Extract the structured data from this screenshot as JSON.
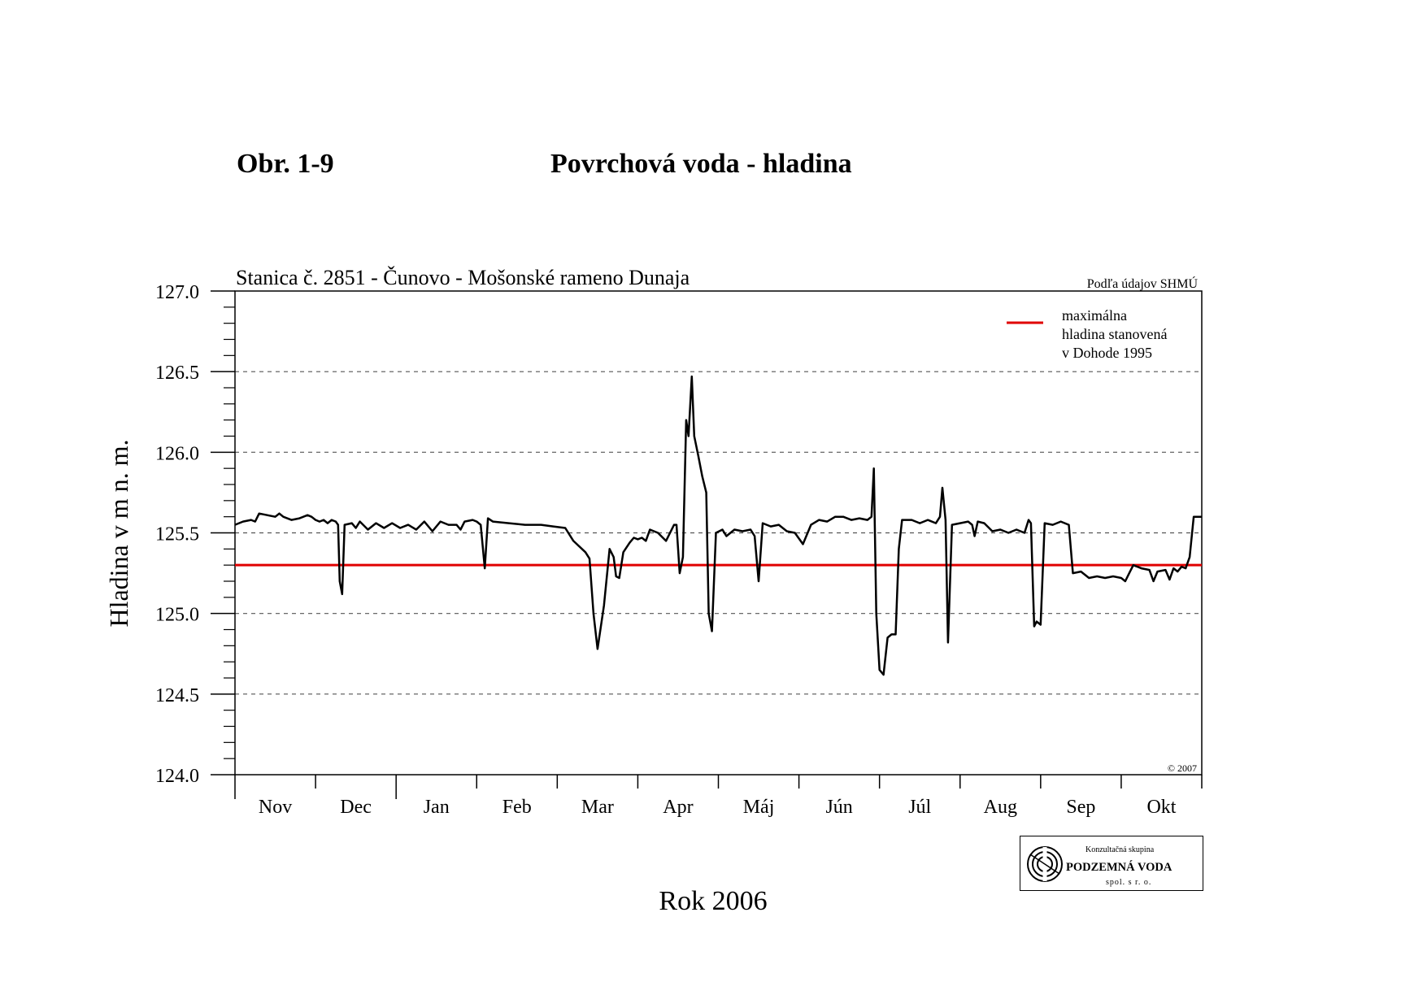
{
  "figure": {
    "number": "Obr. 1-9",
    "title": "Povrchová voda - hladina"
  },
  "colors": {
    "series": "#000000",
    "limit_line": "#e00000",
    "grid": "#555555"
  },
  "chart_data": {
    "type": "line",
    "title": "Stanica č. 2851 - Čunovo - Mošonské rameno Dunaja",
    "source_note": "Podľa údajov SHMÚ",
    "copyright": "© 2007",
    "xlabel": "Rok 2006",
    "ylabel": "Hladina v m n. m.",
    "ylim": [
      124.0,
      127.0
    ],
    "xlim": [
      0,
      12
    ],
    "grid": "horizontal dashed",
    "legend_position": "top-right",
    "yticks": [
      "127.0",
      "126.5",
      "126.0",
      "125.5",
      "125.0",
      "124.5",
      "124.0"
    ],
    "months": [
      "Nov",
      "Dec",
      "Jan",
      "Feb",
      "Mar",
      "Apr",
      "Máj",
      "Jún",
      "Júl",
      "Aug",
      "Sep",
      "Okt"
    ],
    "reference_line": {
      "name": "maximálna hladina stanovená v Dohode 1995",
      "legend_lines": [
        "maximálna",
        "hladina stanovená",
        "v Dohode 1995"
      ],
      "value": 125.3
    },
    "series": [
      {
        "values": [
          [
            0.0,
            125.55
          ],
          [
            0.1,
            125.57
          ],
          [
            0.2,
            125.58
          ],
          [
            0.25,
            125.57
          ],
          [
            0.3,
            125.62
          ],
          [
            0.4,
            125.61
          ],
          [
            0.5,
            125.6
          ],
          [
            0.55,
            125.62
          ],
          [
            0.6,
            125.6
          ],
          [
            0.7,
            125.58
          ],
          [
            0.8,
            125.59
          ],
          [
            0.9,
            125.61
          ],
          [
            0.95,
            125.6
          ],
          [
            1.0,
            125.58
          ],
          [
            1.05,
            125.57
          ],
          [
            1.1,
            125.58
          ],
          [
            1.15,
            125.56
          ],
          [
            1.2,
            125.58
          ],
          [
            1.25,
            125.57
          ],
          [
            1.28,
            125.55
          ],
          [
            1.3,
            125.2
          ],
          [
            1.33,
            125.12
          ],
          [
            1.36,
            125.55
          ],
          [
            1.45,
            125.56
          ],
          [
            1.5,
            125.53
          ],
          [
            1.55,
            125.57
          ],
          [
            1.65,
            125.52
          ],
          [
            1.75,
            125.56
          ],
          [
            1.85,
            125.53
          ],
          [
            1.95,
            125.56
          ],
          [
            2.05,
            125.53
          ],
          [
            2.15,
            125.55
          ],
          [
            2.25,
            125.52
          ],
          [
            2.35,
            125.57
          ],
          [
            2.45,
            125.51
          ],
          [
            2.55,
            125.57
          ],
          [
            2.65,
            125.55
          ],
          [
            2.75,
            125.55
          ],
          [
            2.8,
            125.52
          ],
          [
            2.85,
            125.57
          ],
          [
            2.95,
            125.58
          ],
          [
            3.0,
            125.57
          ],
          [
            3.05,
            125.55
          ],
          [
            3.1,
            125.28
          ],
          [
            3.14,
            125.59
          ],
          [
            3.2,
            125.57
          ],
          [
            3.4,
            125.56
          ],
          [
            3.6,
            125.55
          ],
          [
            3.8,
            125.55
          ],
          [
            3.95,
            125.54
          ],
          [
            4.1,
            125.53
          ],
          [
            4.2,
            125.45
          ],
          [
            4.35,
            125.38
          ],
          [
            4.4,
            125.34
          ],
          [
            4.45,
            125.0
          ],
          [
            4.5,
            124.78
          ],
          [
            4.58,
            125.05
          ],
          [
            4.65,
            125.4
          ],
          [
            4.7,
            125.35
          ],
          [
            4.73,
            125.23
          ],
          [
            4.77,
            125.22
          ],
          [
            4.82,
            125.38
          ],
          [
            4.9,
            125.44
          ],
          [
            4.95,
            125.47
          ],
          [
            5.0,
            125.46
          ],
          [
            5.05,
            125.47
          ],
          [
            5.1,
            125.45
          ],
          [
            5.15,
            125.52
          ],
          [
            5.25,
            125.5
          ],
          [
            5.35,
            125.45
          ],
          [
            5.45,
            125.55
          ],
          [
            5.48,
            125.55
          ],
          [
            5.52,
            125.25
          ],
          [
            5.56,
            125.35
          ],
          [
            5.6,
            126.2
          ],
          [
            5.63,
            126.1
          ],
          [
            5.67,
            126.47
          ],
          [
            5.7,
            126.1
          ],
          [
            5.75,
            125.98
          ],
          [
            5.8,
            125.85
          ],
          [
            5.85,
            125.75
          ],
          [
            5.88,
            125.0
          ],
          [
            5.92,
            124.89
          ],
          [
            5.97,
            125.5
          ],
          [
            6.05,
            125.52
          ],
          [
            6.1,
            125.48
          ],
          [
            6.2,
            125.52
          ],
          [
            6.3,
            125.51
          ],
          [
            6.4,
            125.52
          ],
          [
            6.45,
            125.48
          ],
          [
            6.5,
            125.2
          ],
          [
            6.55,
            125.56
          ],
          [
            6.65,
            125.54
          ],
          [
            6.75,
            125.55
          ],
          [
            6.85,
            125.51
          ],
          [
            6.95,
            125.5
          ],
          [
            7.05,
            125.43
          ],
          [
            7.15,
            125.55
          ],
          [
            7.25,
            125.58
          ],
          [
            7.35,
            125.57
          ],
          [
            7.45,
            125.6
          ],
          [
            7.55,
            125.6
          ],
          [
            7.65,
            125.58
          ],
          [
            7.75,
            125.59
          ],
          [
            7.85,
            125.58
          ],
          [
            7.9,
            125.6
          ],
          [
            7.93,
            125.9
          ],
          [
            7.96,
            125.0
          ],
          [
            8.0,
            124.65
          ],
          [
            8.05,
            124.62
          ],
          [
            8.1,
            124.85
          ],
          [
            8.15,
            124.87
          ],
          [
            8.2,
            124.87
          ],
          [
            8.24,
            125.4
          ],
          [
            8.28,
            125.58
          ],
          [
            8.4,
            125.58
          ],
          [
            8.5,
            125.56
          ],
          [
            8.6,
            125.58
          ],
          [
            8.7,
            125.56
          ],
          [
            8.75,
            125.6
          ],
          [
            8.78,
            125.78
          ],
          [
            8.82,
            125.58
          ],
          [
            8.85,
            124.82
          ],
          [
            8.9,
            125.55
          ],
          [
            9.0,
            125.56
          ],
          [
            9.1,
            125.57
          ],
          [
            9.15,
            125.55
          ],
          [
            9.18,
            125.48
          ],
          [
            9.22,
            125.57
          ],
          [
            9.3,
            125.56
          ],
          [
            9.4,
            125.51
          ],
          [
            9.5,
            125.52
          ],
          [
            9.6,
            125.5
          ],
          [
            9.7,
            125.52
          ],
          [
            9.8,
            125.5
          ],
          [
            9.85,
            125.58
          ],
          [
            9.88,
            125.56
          ],
          [
            9.92,
            124.92
          ],
          [
            9.95,
            124.95
          ],
          [
            10.0,
            124.93
          ],
          [
            10.05,
            125.56
          ],
          [
            10.15,
            125.55
          ],
          [
            10.25,
            125.57
          ],
          [
            10.35,
            125.55
          ],
          [
            10.4,
            125.25
          ],
          [
            10.5,
            125.26
          ],
          [
            10.6,
            125.22
          ],
          [
            10.7,
            125.23
          ],
          [
            10.8,
            125.22
          ],
          [
            10.9,
            125.23
          ],
          [
            11.0,
            125.22
          ],
          [
            11.05,
            125.2
          ],
          [
            11.1,
            125.25
          ],
          [
            11.15,
            125.3
          ],
          [
            11.25,
            125.28
          ],
          [
            11.35,
            125.27
          ],
          [
            11.4,
            125.2
          ],
          [
            11.45,
            125.26
          ],
          [
            11.55,
            125.27
          ],
          [
            11.6,
            125.21
          ],
          [
            11.65,
            125.28
          ],
          [
            11.7,
            125.26
          ],
          [
            11.75,
            125.29
          ],
          [
            11.8,
            125.28
          ],
          [
            11.85,
            125.35
          ],
          [
            11.9,
            125.6
          ],
          [
            12.0,
            125.6
          ]
        ]
      }
    ]
  },
  "logo": {
    "line1": "Konzultačná skupina",
    "line2": "PODZEMNÁ VODA",
    "line3": "spol. s r. o."
  }
}
